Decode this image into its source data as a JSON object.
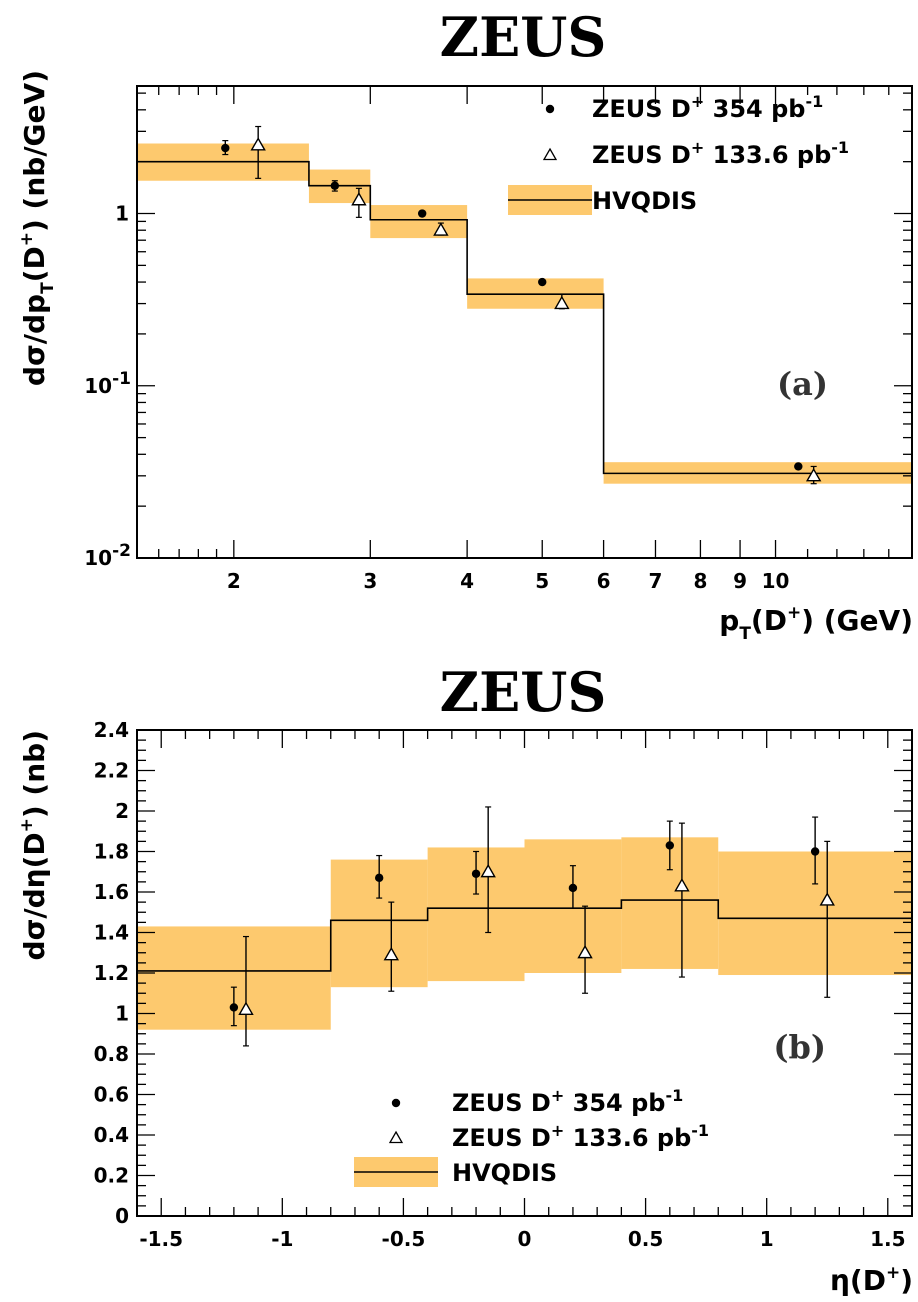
{
  "chart_data": [
    {
      "id": "a",
      "type": "scatter",
      "title": "ZEUS",
      "panel_label": "(a)",
      "xlabel": {
        "pre": "p",
        "sub": "T",
        "mid": "(D",
        "sup": "+",
        "post": ") (GeV)"
      },
      "ylabel": {
        "pre": "dσ/dp",
        "sub": "T",
        "mid": "(D",
        "sup": "+",
        "post": ") (nb/GeV)"
      },
      "xscale": "log",
      "yscale": "log",
      "xlim": [
        1.5,
        15
      ],
      "ylim": [
        0.01,
        5.5
      ],
      "x_ticks": [
        {
          "v": 2,
          "label": "2"
        },
        {
          "v": 3,
          "label": "3"
        },
        {
          "v": 4,
          "label": "4"
        },
        {
          "v": 5,
          "label": "5"
        },
        {
          "v": 6,
          "label": "6"
        },
        {
          "v": 7,
          "label": "7"
        },
        {
          "v": 8,
          "label": "8"
        },
        {
          "v": 9,
          "label": "9"
        },
        {
          "v": 10,
          "label": "10"
        }
      ],
      "y_ticks": [
        {
          "v": 0.01,
          "base": "10",
          "exp": "-2"
        },
        {
          "v": 0.1,
          "base": "10",
          "exp": "-1"
        },
        {
          "v": 1,
          "base": "1",
          "exp": ""
        }
      ],
      "grid": false,
      "legend_position": "top-right",
      "legend": [
        {
          "marker": "dot",
          "label": "ZEUS D",
          "sup": "+",
          "label2": " 354 pb",
          "sup2": "-1"
        },
        {
          "marker": "triangle",
          "label": "ZEUS D",
          "sup": "+",
          "label2": " 133.6 pb",
          "sup2": "-1"
        },
        {
          "marker": "band",
          "label": "HVQDIS",
          "sup": "",
          "label2": "",
          "sup2": ""
        }
      ],
      "series": [
        {
          "name": "ZEUS D+ 354 pb-1",
          "marker": "dot",
          "points": [
            {
              "x": 1.95,
              "y": 2.4,
              "lo": 2.2,
              "hi": 2.65
            },
            {
              "x": 2.7,
              "y": 1.45,
              "lo": 1.35,
              "hi": 1.55
            },
            {
              "x": 3.5,
              "y": 1.0,
              "lo": 0.97,
              "hi": 1.03
            },
            {
              "x": 5.0,
              "y": 0.4,
              "lo": 0.39,
              "hi": 0.41
            },
            {
              "x": 10.7,
              "y": 0.034,
              "lo": 0.033,
              "hi": 0.035
            }
          ]
        },
        {
          "name": "ZEUS D+ 133.6 pb-1",
          "marker": "triangle",
          "points": [
            {
              "x": 2.15,
              "y": 2.5,
              "lo": 1.6,
              "hi": 3.2
            },
            {
              "x": 2.9,
              "y": 1.2,
              "lo": 0.95,
              "hi": 1.4
            },
            {
              "x": 3.7,
              "y": 0.8,
              "lo": 0.75,
              "hi": 0.88
            },
            {
              "x": 5.3,
              "y": 0.3,
              "lo": 0.28,
              "hi": 0.34
            },
            {
              "x": 11.2,
              "y": 0.03,
              "lo": 0.027,
              "hi": 0.034
            }
          ]
        }
      ],
      "theory": {
        "name": "HVQDIS",
        "bins": [
          {
            "x0": 1.5,
            "x1": 2.5,
            "y": 2.0,
            "lo": 1.55,
            "hi": 2.55
          },
          {
            "x0": 2.5,
            "x1": 3.0,
            "y": 1.45,
            "lo": 1.15,
            "hi": 1.8
          },
          {
            "x0": 3.0,
            "x1": 4.0,
            "y": 0.92,
            "lo": 0.72,
            "hi": 1.12
          },
          {
            "x0": 4.0,
            "x1": 6.0,
            "y": 0.34,
            "lo": 0.28,
            "hi": 0.42
          },
          {
            "x0": 6.0,
            "x1": 15.0,
            "y": 0.031,
            "lo": 0.027,
            "hi": 0.036
          }
        ]
      }
    },
    {
      "id": "b",
      "type": "scatter",
      "title": "ZEUS",
      "panel_label": "(b)",
      "xlabel": {
        "pre": "η(D",
        "sub": "",
        "mid": "",
        "sup": "+",
        "post": ")"
      },
      "ylabel": {
        "pre": "dσ/dη(D",
        "sub": "",
        "mid": "",
        "sup": "+",
        "post": ") (nb)"
      },
      "xscale": "linear",
      "yscale": "linear",
      "xlim": [
        -1.6,
        1.6
      ],
      "ylim": [
        0,
        2.4
      ],
      "x_ticks": [
        {
          "v": -1.5,
          "label": "-1.5"
        },
        {
          "v": -1,
          "label": "-1"
        },
        {
          "v": -0.5,
          "label": "-0.5"
        },
        {
          "v": 0,
          "label": "0"
        },
        {
          "v": 0.5,
          "label": "0.5"
        },
        {
          "v": 1,
          "label": "1"
        },
        {
          "v": 1.5,
          "label": "1.5"
        }
      ],
      "y_ticks": [
        {
          "v": 0,
          "label": "0"
        },
        {
          "v": 0.2,
          "label": "0.2"
        },
        {
          "v": 0.4,
          "label": "0.4"
        },
        {
          "v": 0.6,
          "label": "0.6"
        },
        {
          "v": 0.8,
          "label": "0.8"
        },
        {
          "v": 1,
          "label": "1"
        },
        {
          "v": 1.2,
          "label": "1.2"
        },
        {
          "v": 1.4,
          "label": "1.4"
        },
        {
          "v": 1.6,
          "label": "1.6"
        },
        {
          "v": 1.8,
          "label": "1.8"
        },
        {
          "v": 2,
          "label": "2"
        },
        {
          "v": 2.2,
          "label": "2.2"
        },
        {
          "v": 2.4,
          "label": "2.4"
        }
      ],
      "grid": false,
      "legend_position": "bottom-center",
      "legend": [
        {
          "marker": "dot",
          "label": "ZEUS D",
          "sup": "+",
          "label2": " 354 pb",
          "sup2": "-1"
        },
        {
          "marker": "triangle",
          "label": "ZEUS D",
          "sup": "+",
          "label2": " 133.6 pb",
          "sup2": "-1"
        },
        {
          "marker": "band",
          "label": "HVQDIS",
          "sup": "",
          "label2": "",
          "sup2": ""
        }
      ],
      "series": [
        {
          "name": "ZEUS D+ 354 pb-1",
          "marker": "dot",
          "points": [
            {
              "x": -1.2,
              "y": 1.03,
              "lo": 0.94,
              "hi": 1.13
            },
            {
              "x": -0.6,
              "y": 1.67,
              "lo": 1.57,
              "hi": 1.78
            },
            {
              "x": -0.2,
              "y": 1.69,
              "lo": 1.59,
              "hi": 1.8
            },
            {
              "x": 0.2,
              "y": 1.62,
              "lo": 1.52,
              "hi": 1.73
            },
            {
              "x": 0.6,
              "y": 1.83,
              "lo": 1.71,
              "hi": 1.95
            },
            {
              "x": 1.2,
              "y": 1.8,
              "lo": 1.64,
              "hi": 1.97
            }
          ]
        },
        {
          "name": "ZEUS D+ 133.6 pb-1",
          "marker": "triangle",
          "points": [
            {
              "x": -1.15,
              "y": 1.02,
              "lo": 0.84,
              "hi": 1.38
            },
            {
              "x": -0.55,
              "y": 1.29,
              "lo": 1.11,
              "hi": 1.55
            },
            {
              "x": -0.15,
              "y": 1.7,
              "lo": 1.4,
              "hi": 2.02
            },
            {
              "x": 0.25,
              "y": 1.3,
              "lo": 1.1,
              "hi": 1.53
            },
            {
              "x": 0.65,
              "y": 1.63,
              "lo": 1.18,
              "hi": 1.94
            },
            {
              "x": 1.25,
              "y": 1.56,
              "lo": 1.08,
              "hi": 1.85
            }
          ]
        }
      ],
      "theory": {
        "name": "HVQDIS",
        "bins": [
          {
            "x0": -1.6,
            "x1": -0.8,
            "y": 1.21,
            "lo": 0.92,
            "hi": 1.43
          },
          {
            "x0": -0.8,
            "x1": -0.4,
            "y": 1.46,
            "lo": 1.13,
            "hi": 1.76
          },
          {
            "x0": -0.4,
            "x1": 0.0,
            "y": 1.52,
            "lo": 1.16,
            "hi": 1.82
          },
          {
            "x0": 0.0,
            "x1": 0.4,
            "y": 1.52,
            "lo": 1.2,
            "hi": 1.86
          },
          {
            "x0": 0.4,
            "x1": 0.8,
            "y": 1.56,
            "lo": 1.22,
            "hi": 1.87
          },
          {
            "x0": 0.8,
            "x1": 1.6,
            "y": 1.47,
            "lo": 1.19,
            "hi": 1.8
          }
        ]
      }
    }
  ],
  "colors": {
    "band": "#fdc96e",
    "line": "#000000",
    "frame": "#000000"
  }
}
